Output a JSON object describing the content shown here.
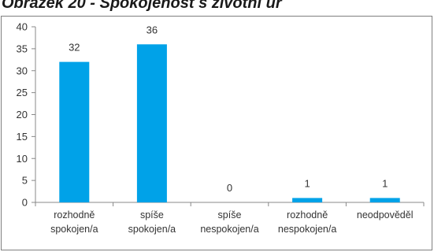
{
  "header": {
    "title": "Obrázek 20 - Spokojenost s životní úr"
  },
  "chart_data": {
    "type": "bar",
    "title": "",
    "xlabel": "",
    "ylabel": "",
    "categories": [
      [
        "rozhodně",
        "spokojen/a"
      ],
      [
        "spíše",
        "spokojen/a"
      ],
      [
        "spíše",
        "nespokojen/a"
      ],
      [
        "rozhodně",
        "nespokojen/a"
      ],
      [
        "neodpověděl"
      ]
    ],
    "values": [
      32,
      36,
      0,
      1,
      1
    ],
    "ylim": [
      0,
      40
    ],
    "yticks": [
      0,
      5,
      10,
      15,
      20,
      25,
      30,
      35,
      40
    ],
    "grid": false,
    "legend": "none",
    "bar_color": "#00a2e8",
    "axis_color": "#888888"
  }
}
